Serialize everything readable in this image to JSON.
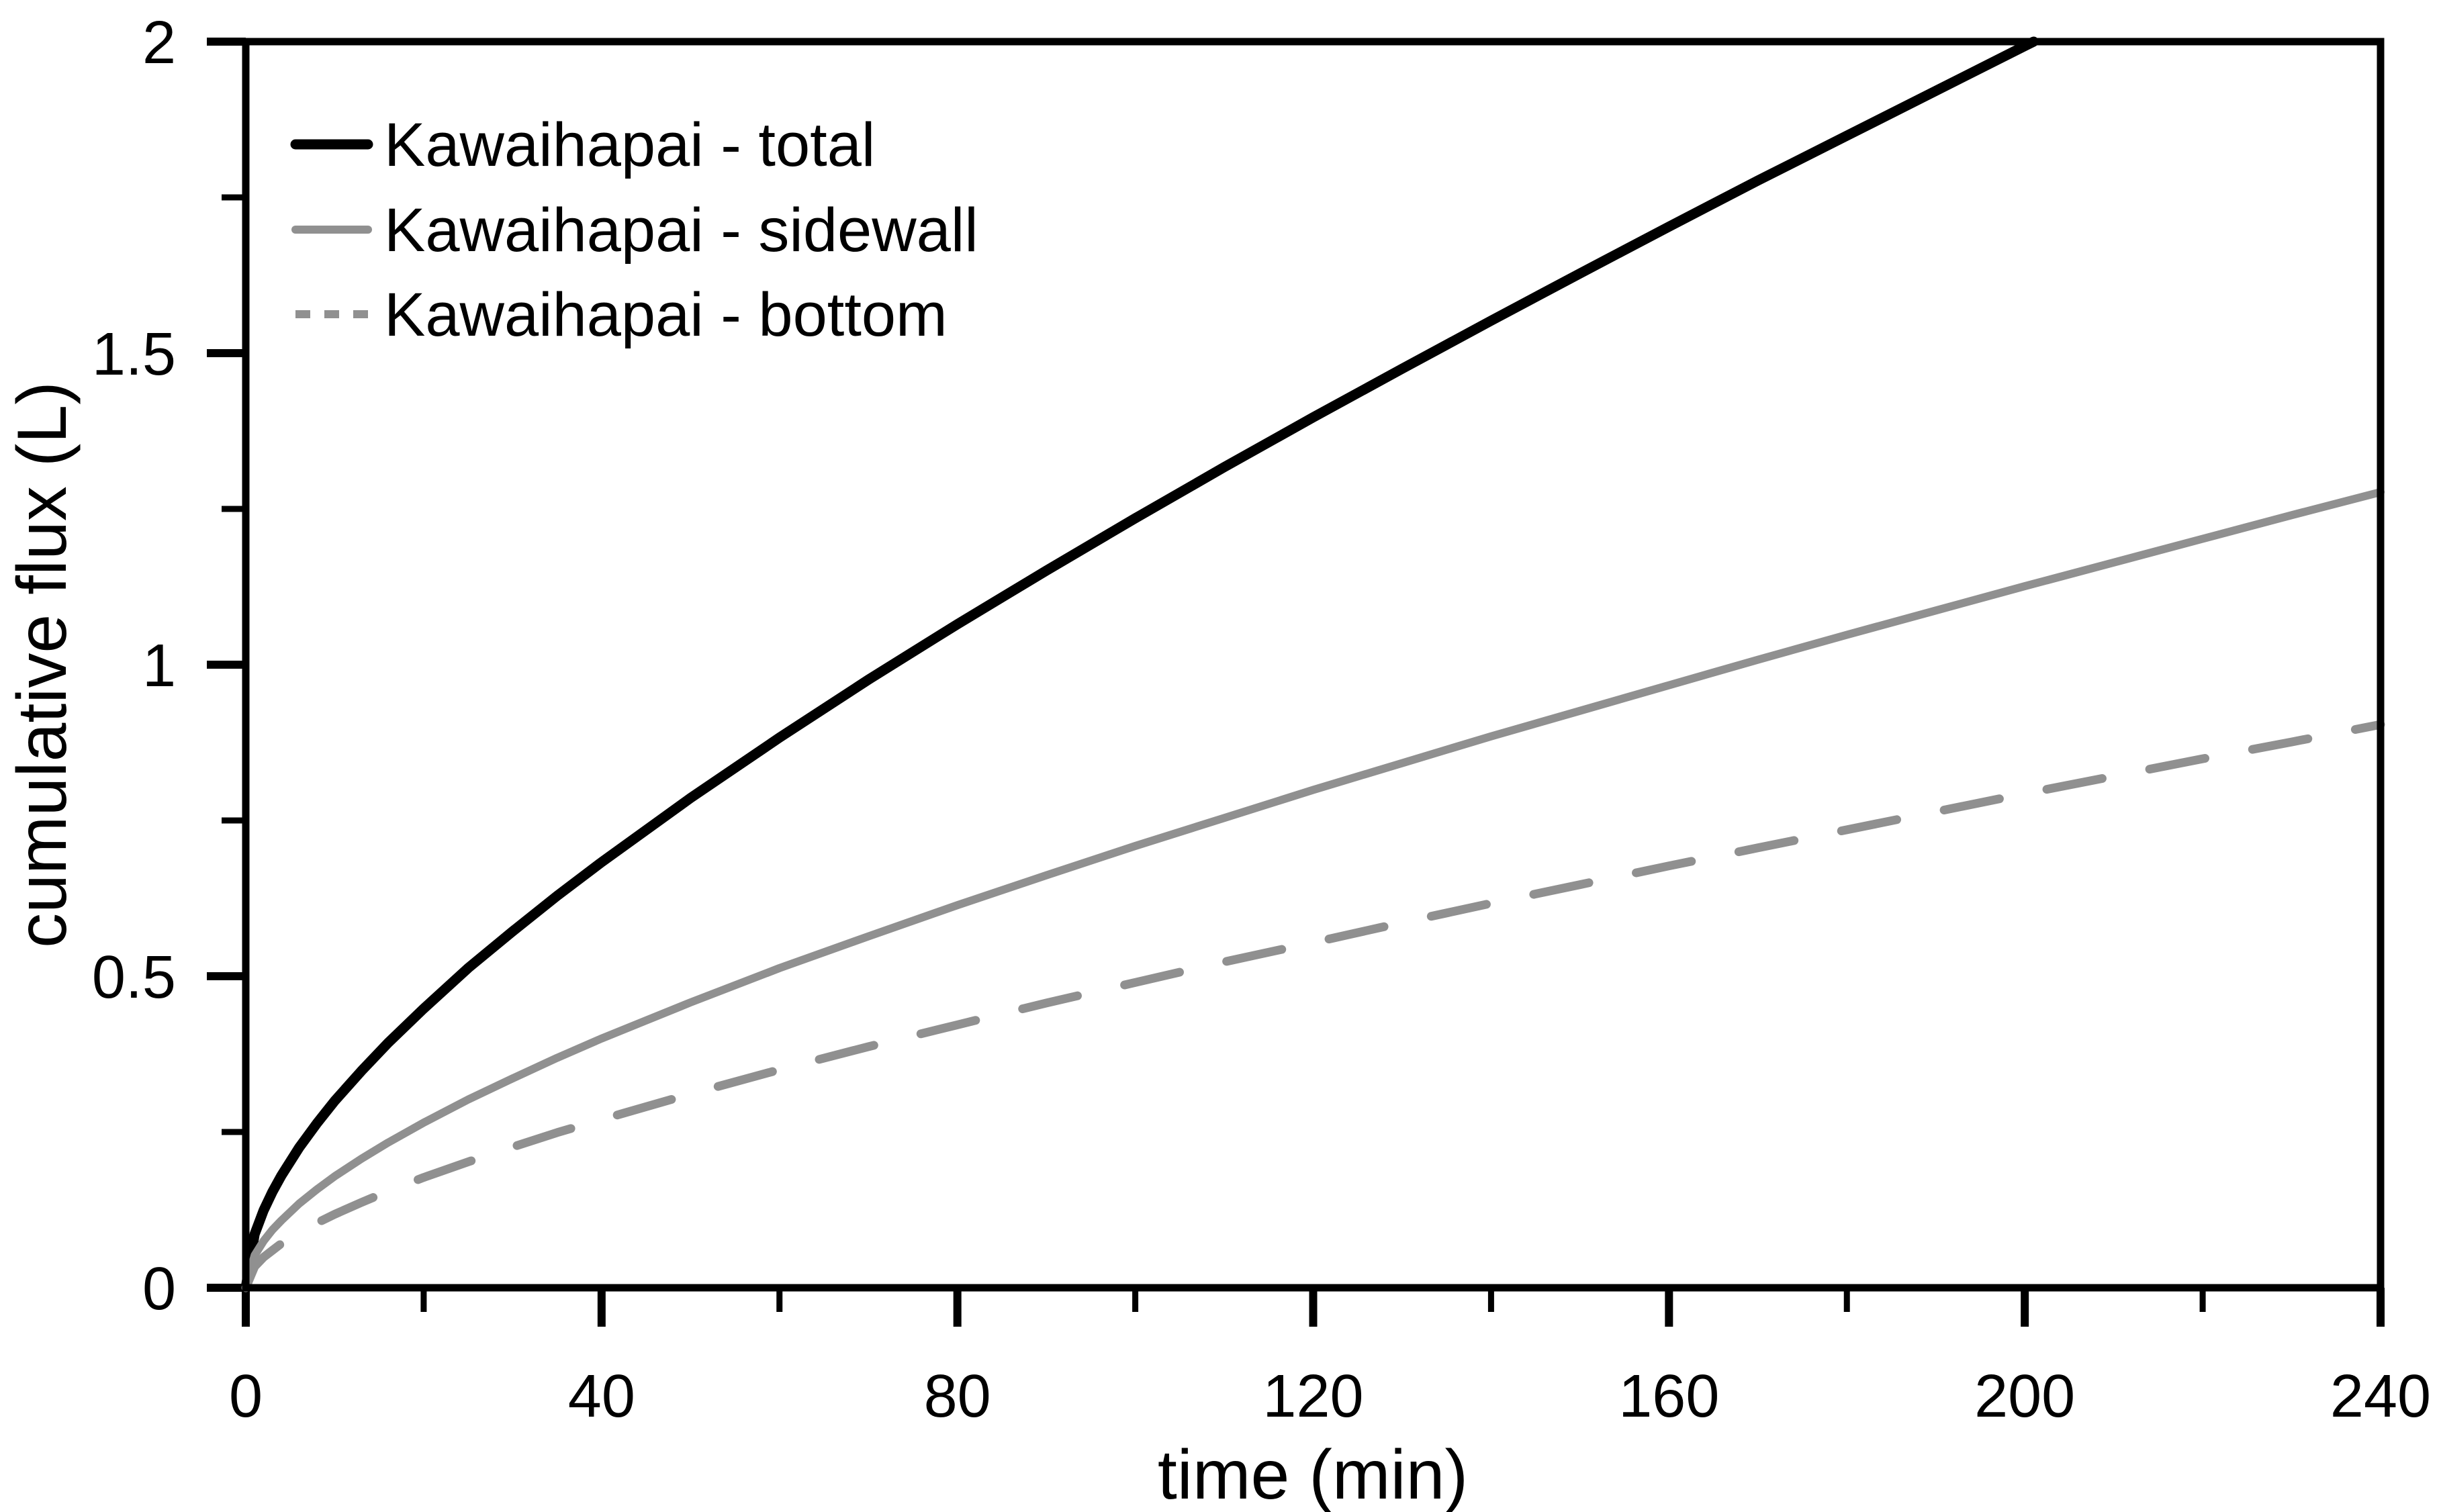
{
  "figure": {
    "background": "#ffffff",
    "axis_color": "#000000"
  },
  "chart_data": {
    "type": "line",
    "title": "",
    "xlabel": "time (min)",
    "ylabel": "cumulative flux (L)",
    "xlim": [
      0,
      240
    ],
    "ylim": [
      0,
      2
    ],
    "grid": false,
    "legend_position": "upper-left-inside",
    "x_ticks": {
      "major": [
        0,
        40,
        80,
        120,
        160,
        200,
        240
      ],
      "labels": [
        "0",
        "40",
        "80",
        "120",
        "160",
        "200",
        "240"
      ],
      "minor": [
        20,
        60,
        100,
        140,
        180,
        220
      ]
    },
    "y_ticks": {
      "major": [
        0,
        0.5,
        1,
        1.5,
        2
      ],
      "labels": [
        "0",
        "0.5",
        "1",
        "1.5",
        "2"
      ],
      "minor": [
        0.25,
        0.75,
        1.25,
        1.75
      ]
    },
    "series": [
      {
        "name": "Kawaihapai - total",
        "color": "#000000",
        "style": "solid",
        "width": 15,
        "points": [
          [
            0,
            0
          ],
          [
            1,
            0.086
          ],
          [
            2,
            0.124
          ],
          [
            3,
            0.154
          ],
          [
            4,
            0.18
          ],
          [
            6,
            0.225
          ],
          [
            8,
            0.264
          ],
          [
            10,
            0.3
          ],
          [
            13,
            0.348
          ],
          [
            16,
            0.393
          ],
          [
            20,
            0.448
          ],
          [
            25,
            0.513
          ],
          [
            30,
            0.572
          ],
          [
            35,
            0.629
          ],
          [
            40,
            0.683
          ],
          [
            50,
            0.786
          ],
          [
            60,
            0.883
          ],
          [
            70,
            0.976
          ],
          [
            80,
            1.065
          ],
          [
            90,
            1.151
          ],
          [
            100,
            1.235
          ],
          [
            110,
            1.317
          ],
          [
            120,
            1.397
          ],
          [
            130,
            1.475
          ],
          [
            140,
            1.552
          ],
          [
            150,
            1.628
          ],
          [
            160,
            1.703
          ],
          [
            170,
            1.777
          ],
          [
            180,
            1.849
          ],
          [
            190,
            1.921
          ],
          [
            200,
            1.993
          ],
          [
            201,
            2.0
          ]
        ]
      },
      {
        "name": "Kawaihapai - sidewall",
        "color": "#909090",
        "style": "solid",
        "width": 12,
        "points": [
          [
            0,
            0
          ],
          [
            1,
            0.052
          ],
          [
            2,
            0.075
          ],
          [
            3,
            0.093
          ],
          [
            4,
            0.108
          ],
          [
            6,
            0.135
          ],
          [
            8,
            0.158
          ],
          [
            10,
            0.179
          ],
          [
            13,
            0.207
          ],
          [
            16,
            0.233
          ],
          [
            20,
            0.265
          ],
          [
            25,
            0.302
          ],
          [
            30,
            0.336
          ],
          [
            35,
            0.369
          ],
          [
            40,
            0.4
          ],
          [
            50,
            0.458
          ],
          [
            60,
            0.513
          ],
          [
            70,
            0.564
          ],
          [
            80,
            0.614
          ],
          [
            90,
            0.662
          ],
          [
            100,
            0.709
          ],
          [
            110,
            0.754
          ],
          [
            120,
            0.799
          ],
          [
            130,
            0.842
          ],
          [
            140,
            0.885
          ],
          [
            150,
            0.926
          ],
          [
            160,
            0.967
          ],
          [
            170,
            1.008
          ],
          [
            180,
            1.048
          ],
          [
            190,
            1.087
          ],
          [
            200,
            1.126
          ],
          [
            210,
            1.164
          ],
          [
            220,
            1.202
          ],
          [
            230,
            1.24
          ],
          [
            240,
            1.277
          ]
        ]
      },
      {
        "name": "Kawaihapai - bottom",
        "color": "#909090",
        "style": "dashed",
        "width": 13,
        "dash": [
          84,
          72
        ],
        "points": [
          [
            0,
            0
          ],
          [
            1,
            0.034
          ],
          [
            2,
            0.049
          ],
          [
            3,
            0.06
          ],
          [
            4,
            0.071
          ],
          [
            6,
            0.089
          ],
          [
            8,
            0.104
          ],
          [
            10,
            0.118
          ],
          [
            13,
            0.137
          ],
          [
            16,
            0.155
          ],
          [
            20,
            0.177
          ],
          [
            25,
            0.202
          ],
          [
            30,
            0.226
          ],
          [
            35,
            0.249
          ],
          [
            40,
            0.27
          ],
          [
            50,
            0.311
          ],
          [
            60,
            0.35
          ],
          [
            70,
            0.387
          ],
          [
            80,
            0.422
          ],
          [
            90,
            0.457
          ],
          [
            100,
            0.49
          ],
          [
            110,
            0.523
          ],
          [
            120,
            0.554
          ],
          [
            130,
            0.586
          ],
          [
            140,
            0.617
          ],
          [
            150,
            0.647
          ],
          [
            160,
            0.677
          ],
          [
            170,
            0.706
          ],
          [
            180,
            0.735
          ],
          [
            190,
            0.764
          ],
          [
            200,
            0.793
          ],
          [
            210,
            0.821
          ],
          [
            220,
            0.849
          ],
          [
            230,
            0.876
          ],
          [
            240,
            0.904
          ]
        ]
      }
    ]
  }
}
